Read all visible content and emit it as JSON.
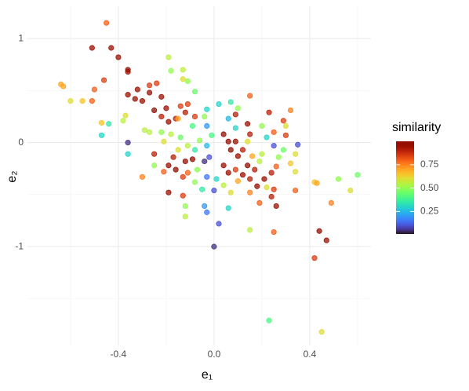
{
  "chart_data": {
    "type": "scatter",
    "x_label": "e₁",
    "y_label": "e₂",
    "legend_title": "similarity",
    "colormap": "turbo",
    "grid": true,
    "xlim": [
      -0.78,
      0.656
    ],
    "ylim": [
      -1.95,
      1.31
    ],
    "xticks": [
      -0.4,
      {
        "value": 0,
        "label": "0.0"
      },
      0.4
    ],
    "yticks": [
      -1,
      0,
      1
    ],
    "xminor": [
      -0.6,
      -0.2,
      0.2,
      0.6
    ],
    "yminor": [
      -1.5,
      -0.5,
      0.5
    ],
    "clim": [
      0.01,
      1.0
    ],
    "cticks": [
      0.25,
      {
        "value": 0.5,
        "label": "0.50"
      },
      0.75
    ],
    "x": [
      -0.45,
      -0.51,
      -0.43,
      -0.4,
      -0.46,
      -0.36,
      -0.36,
      -0.64,
      -0.63,
      -0.6,
      -0.55,
      -0.51,
      -0.5,
      -0.47,
      -0.44,
      -0.47,
      -0.36,
      -0.36,
      -0.19,
      -0.18,
      -0.13,
      -0.11,
      -0.08,
      -0.13,
      -0.24,
      -0.27,
      -0.32,
      -0.3,
      -0.36,
      -0.33,
      -0.27,
      -0.22,
      -0.2,
      -0.25,
      -0.22,
      -0.19,
      -0.16,
      -0.14,
      -0.11,
      -0.12,
      -0.08,
      -0.09,
      -0.04,
      -0.03,
      0.02,
      0.07,
      0.1,
      0.15,
      0.09,
      0.14,
      0.15,
      0.23,
      0.29,
      0.32,
      0.2,
      0.25,
      0.3,
      0.3,
      0.35,
      0.34,
      0.29,
      0.27,
      0.32,
      0.34,
      0.26,
      0.24,
      0.21,
      0.18,
      0.15,
      0.17,
      0.14,
      0.1,
      0.07,
      0.04,
      0.06,
      0.09,
      0.12,
      0.2,
      0.14,
      -0.01,
      -0.03,
      -0.06,
      -0.08,
      -0.11,
      -0.14,
      -0.15,
      -0.17,
      -0.19,
      -0.16,
      -0.12,
      -0.09,
      -0.11,
      -0.13,
      -0.21,
      -0.19,
      -0.13,
      -0.08,
      -0.05,
      -0.03,
      0.0,
      0.01,
      0.04,
      0.07,
      0.1,
      0.15,
      0.19,
      0.24,
      0.26,
      0.22,
      0.25,
      0.34,
      0.42,
      0.43,
      0.52,
      0.6,
      0.57,
      0.49,
      0.44,
      0.47,
      0.42,
      0.45,
      0.23,
      0.15,
      0.25,
      0.0,
      0.02,
      0.06,
      -0.03,
      -0.04,
      -0.12,
      -0.12,
      -0.25,
      -0.3,
      -0.25,
      -0.29,
      -0.27,
      -0.22,
      -0.21,
      -0.18,
      -0.38,
      -0.37,
      -0.03,
      0.09,
      0.06,
      0.04,
      0.06,
      -0.04,
      -0.02,
      -0.07,
      0.09,
      0.12,
      0.19,
      0.16,
      0.25,
      0.22,
      -0.15
    ],
    "y": [
      1.15,
      0.91,
      0.91,
      0.82,
      0.6,
      0.7,
      0.68,
      0.56,
      0.54,
      0.4,
      0.4,
      0.4,
      0.51,
      0.19,
      0.18,
      0.07,
      0.0,
      -0.11,
      0.82,
      0.69,
      0.7,
      0.59,
      0.49,
      0.61,
      0.57,
      0.55,
      0.51,
      0.4,
      0.46,
      0.42,
      0.48,
      0.44,
      0.33,
      0.31,
      0.25,
      0.2,
      0.23,
      0.35,
      0.37,
      0.29,
      0.25,
      0.16,
      0.25,
      0.32,
      0.37,
      0.39,
      0.33,
      0.45,
      0.27,
      0.18,
      0.08,
      0.29,
      0.21,
      0.31,
      0.16,
      0.1,
      0.16,
      0.07,
      -0.02,
      -0.11,
      -0.07,
      -0.14,
      -0.2,
      -0.28,
      -0.23,
      -0.29,
      -0.35,
      -0.42,
      -0.35,
      -0.26,
      -0.22,
      -0.13,
      -0.07,
      0.08,
      0.01,
      0.01,
      -0.07,
      -0.11,
      0.01,
      0.07,
      -0.03,
      0.02,
      -0.07,
      -0.03,
      0.05,
      -0.07,
      -0.14,
      -0.22,
      -0.26,
      -0.18,
      -0.16,
      -0.29,
      -0.33,
      -0.28,
      -0.48,
      -0.51,
      -0.38,
      -0.45,
      -0.33,
      -0.46,
      -0.35,
      -0.41,
      -0.48,
      -0.37,
      -0.48,
      -0.58,
      -0.52,
      -0.61,
      -0.43,
      -0.45,
      -0.46,
      -0.38,
      -0.39,
      -0.35,
      -0.31,
      -0.46,
      -0.58,
      -0.85,
      -0.94,
      -1.11,
      -1.82,
      -1.71,
      -0.84,
      -0.86,
      -1.0,
      -0.78,
      -0.63,
      -0.67,
      -0.61,
      -0.61,
      -0.71,
      -0.22,
      -0.33,
      -0.11,
      0.12,
      0.1,
      0.1,
      0.01,
      0.08,
      0.21,
      0.26,
      0.16,
      0.14,
      0.23,
      -0.22,
      -0.29,
      -0.18,
      -0.14,
      -0.26,
      -0.26,
      -0.31,
      -0.18,
      -0.13,
      -0.03,
      0.05,
      0.23
    ],
    "similarity": [
      0.8,
      0.95,
      0.95,
      0.95,
      0.85,
      1.0,
      0.95,
      0.7,
      0.7,
      0.6,
      0.65,
      0.8,
      0.8,
      0.65,
      0.35,
      0.3,
      0.05,
      0.3,
      0.55,
      0.5,
      0.55,
      0.5,
      0.45,
      0.6,
      0.85,
      0.85,
      0.95,
      0.95,
      0.95,
      0.95,
      0.95,
      0.95,
      0.95,
      1.0,
      0.9,
      0.95,
      0.9,
      0.85,
      0.85,
      0.9,
      0.85,
      0.4,
      0.5,
      0.3,
      0.3,
      0.35,
      0.5,
      0.8,
      0.9,
      0.95,
      0.9,
      0.9,
      0.85,
      0.75,
      0.5,
      0.8,
      0.6,
      0.85,
      0.1,
      0.6,
      0.45,
      0.5,
      0.65,
      0.6,
      0.8,
      0.9,
      0.95,
      1.0,
      0.9,
      0.9,
      1.0,
      0.95,
      1.0,
      1.0,
      1.0,
      0.95,
      0.9,
      0.55,
      0.6,
      0.4,
      0.25,
      0.5,
      0.35,
      0.55,
      0.45,
      0.6,
      0.9,
      0.95,
      1.0,
      0.95,
      1.0,
      0.8,
      0.85,
      0.8,
      0.95,
      0.85,
      0.5,
      0.35,
      0.15,
      0.1,
      0.3,
      0.55,
      0.6,
      0.7,
      0.75,
      0.8,
      0.9,
      0.95,
      0.6,
      0.85,
      0.8,
      0.65,
      0.7,
      0.5,
      0.45,
      0.6,
      0.75,
      1.0,
      0.95,
      0.85,
      0.6,
      0.4,
      0.55,
      0.8,
      0.05,
      0.1,
      0.3,
      0.15,
      0.2,
      0.5,
      0.55,
      0.5,
      0.75,
      0.9,
      0.55,
      0.55,
      0.5,
      0.6,
      0.55,
      0.55,
      0.6,
      0.2,
      0.3,
      0.25,
      0.95,
      0.95,
      0.05,
      0.1,
      0.5,
      0.85,
      0.95,
      0.55,
      0.7,
      0.1,
      0.3,
      0.7
    ]
  }
}
